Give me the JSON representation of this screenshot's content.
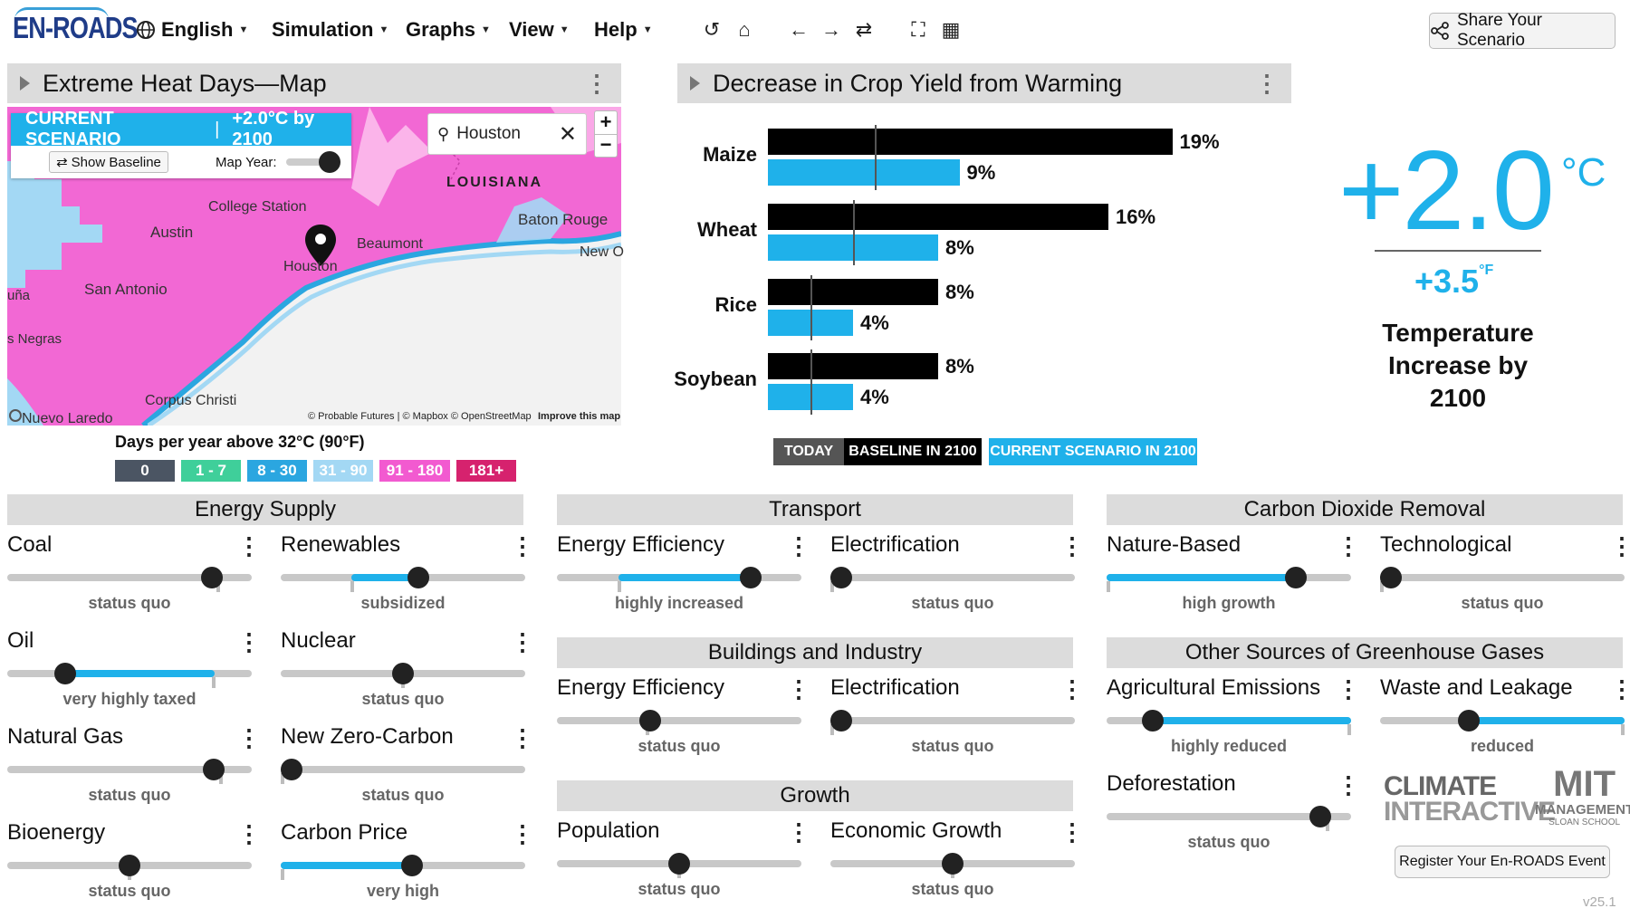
{
  "header": {
    "logo": "EN-ROADS",
    "menus": [
      {
        "label": "English"
      },
      {
        "label": "Simulation"
      },
      {
        "label": "Graphs"
      },
      {
        "label": "View"
      },
      {
        "label": "Help"
      }
    ],
    "share_label": "Share Your Scenario"
  },
  "map_panel": {
    "title": "Extreme Heat Days—Map",
    "scenario_label": "CURRENT SCENARIO",
    "scenario_value": "+2.0°C by 2100",
    "show_baseline": "Show Baseline",
    "map_year": "Map Year:",
    "search_value": "Houston",
    "places": {
      "louisiana": "LOUISIANA",
      "baton_rouge": "Baton Rouge",
      "college_station": "College Station",
      "austin": "Austin",
      "beaumont": "Beaumont",
      "houston": "Houston",
      "new_orleans": "New O",
      "san_antonio": "San Antonio",
      "una": "uña",
      "negras": "s Negras",
      "corpus": "Corpus Christi",
      "laredo": "Nuevo Laredo"
    },
    "attribution": "© Probable Futures | © Mapbox © OpenStreetMap",
    "improve": "Improve this map",
    "legend_title": "Days per year above 32°C (90°F)",
    "legend": [
      {
        "label": "0",
        "color": "#4b5563"
      },
      {
        "label": "1 - 7",
        "color": "#3fcf9a"
      },
      {
        "label": "8 - 30",
        "color": "#2ba6e0"
      },
      {
        "label": "31 - 90",
        "color": "#a3d8f4"
      },
      {
        "label": "91 - 180",
        "color": "#f25ad0"
      },
      {
        "label": "181+",
        "color": "#d6226e"
      }
    ]
  },
  "crop_panel": {
    "title": "Decrease in Crop Yield from Warming",
    "chart_data": {
      "type": "bar",
      "title": "Decrease in Crop Yield from Warming",
      "categories": [
        "Maize",
        "Wheat",
        "Rice",
        "Soybean"
      ],
      "series": [
        {
          "name": "BASELINE IN 2100",
          "values": [
            19,
            16,
            8,
            8
          ],
          "color": "#000000"
        },
        {
          "name": "CURRENT SCENARIO IN 2100",
          "values": [
            9,
            8,
            4,
            4
          ],
          "color": "#1fb1ea"
        }
      ],
      "today": [
        5,
        4,
        2,
        2
      ],
      "unit": "%",
      "xlim": [
        0,
        20
      ],
      "legend": [
        "TODAY",
        "BASELINE IN 2100",
        "CURRENT SCENARIO IN 2100"
      ]
    }
  },
  "temperature": {
    "value": "+2.0",
    "unit_c": "°C",
    "value_f": "+3.5",
    "unit_f": "°F",
    "label_lines": [
      "Temperature",
      "Increase by",
      "2100"
    ]
  },
  "colors": {
    "accent": "#1fb1ea",
    "map_pink": "#f268d4",
    "header_gray": "#dcdcdc"
  },
  "sections": [
    {
      "id": "energy-supply",
      "title": "Energy Supply",
      "sliders": [
        {
          "name": "Coal",
          "status": "status quo",
          "pos": 0.87,
          "tick": 0.87
        },
        {
          "name": "Renewables",
          "status": "subsidized",
          "pos": 0.57,
          "tick": 0.29,
          "fill": [
            0.29,
            0.57
          ]
        },
        {
          "name": "Oil",
          "status": "very highly taxed",
          "pos": 0.21,
          "tick": 0.85,
          "fill": [
            0.21,
            0.85
          ]
        },
        {
          "name": "Nuclear",
          "status": "status quo",
          "pos": 0.5,
          "tick": 0.5
        },
        {
          "name": "Natural Gas",
          "status": "status quo",
          "pos": 0.88,
          "tick": 0.88
        },
        {
          "name": "New Zero-Carbon",
          "status": "status quo",
          "pos": 0.0,
          "tick": 0.0
        },
        {
          "name": "Bioenergy",
          "status": "status quo",
          "pos": 0.5,
          "tick": 0.5
        },
        {
          "name": "Carbon Price",
          "status": "very high",
          "pos": 0.54,
          "tick": 0.0,
          "fill": [
            0.0,
            0.54
          ]
        }
      ]
    },
    {
      "id": "transport",
      "title": "Transport",
      "sliders": [
        {
          "name": "Energy Efficiency",
          "status": "highly increased",
          "pos": 0.82,
          "tick": 0.25,
          "fill": [
            0.25,
            0.82
          ]
        },
        {
          "name": "Electrification",
          "status": "status quo",
          "pos": 0.0,
          "tick": 0.0
        }
      ]
    },
    {
      "id": "buildings",
      "title": "Buildings and Industry",
      "sliders": [
        {
          "name": "Energy Efficiency",
          "status": "status quo",
          "pos": 0.37,
          "tick": 0.37
        },
        {
          "name": "Electrification",
          "status": "status quo",
          "pos": 0.0,
          "tick": 0.0
        }
      ]
    },
    {
      "id": "growth",
      "title": "Growth",
      "sliders": [
        {
          "name": "Population",
          "status": "status quo",
          "pos": 0.5,
          "tick": 0.5
        },
        {
          "name": "Economic Growth",
          "status": "status quo",
          "pos": 0.5,
          "tick": 0.5
        }
      ]
    },
    {
      "id": "cdr",
      "title": "Carbon Dioxide Removal",
      "sliders": [
        {
          "name": "Nature-Based",
          "status": "high growth",
          "pos": 0.8,
          "tick": 0.0,
          "fill": [
            0.0,
            0.8
          ]
        },
        {
          "name": "Technological",
          "status": "status quo",
          "pos": 0.0,
          "tick": 0.0
        }
      ]
    },
    {
      "id": "other-ghg",
      "title": "Other Sources of Greenhouse Gases",
      "sliders": [
        {
          "name": "Agricultural Emissions",
          "status": "highly reduced",
          "pos": 0.16,
          "tick": 1.0,
          "fill": [
            0.16,
            1.0
          ]
        },
        {
          "name": "Waste and Leakage",
          "status": "reduced",
          "pos": 0.35,
          "tick": 1.0,
          "fill": [
            0.35,
            1.0
          ]
        },
        {
          "name": "Deforestation",
          "status": "status quo",
          "pos": 0.91,
          "tick": 0.91
        }
      ]
    }
  ],
  "footer": {
    "climate_logo_1": "CLIMATE",
    "climate_logo_2": "INTERACTIVE",
    "mit_logo_1": "MIT",
    "mit_logo_2": "MANAGEMENT",
    "mit_logo_3": "SLOAN SCHOOL",
    "register": "Register Your En-ROADS Event",
    "version": "v25.1"
  }
}
